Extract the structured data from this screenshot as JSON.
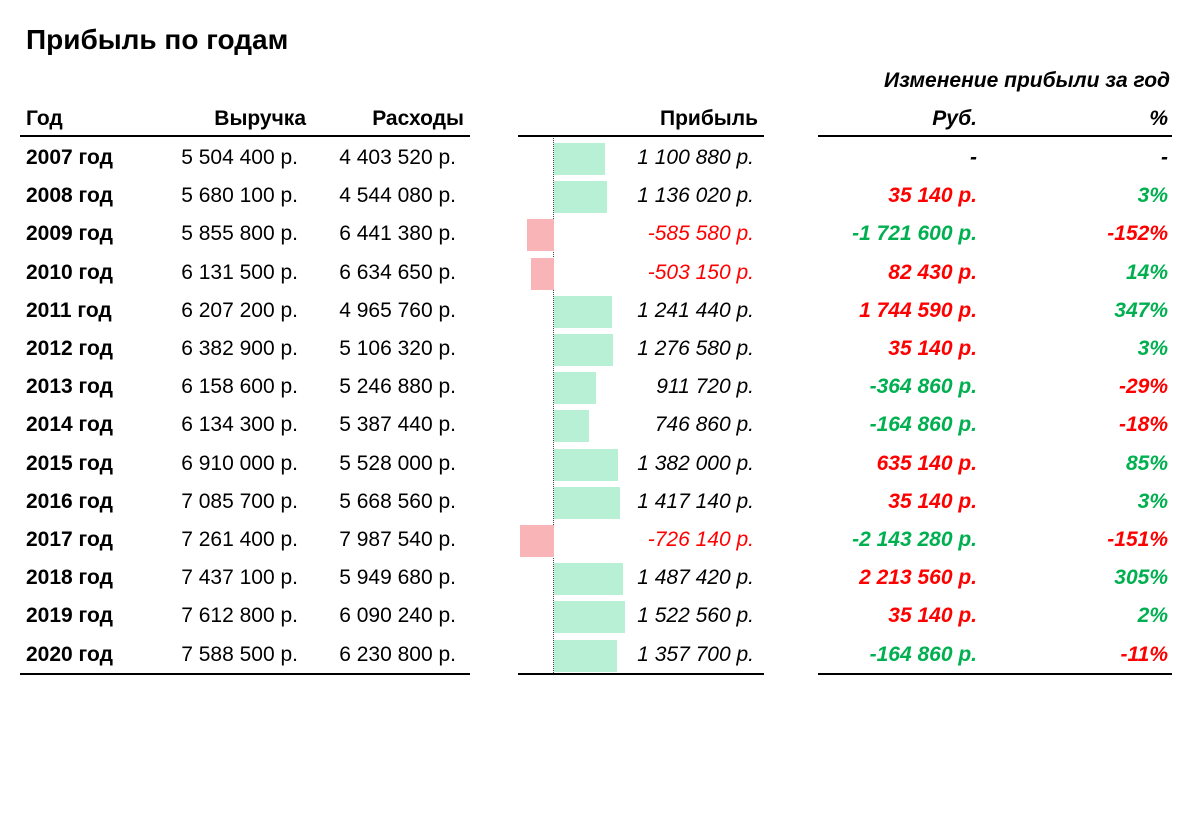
{
  "title": "Прибыль по годам",
  "change_title": "Изменение прибыли за год",
  "headers": {
    "year": "Год",
    "revenue": "Выручка",
    "expenses": "Расходы",
    "profit": "Прибыль",
    "rub": "Руб.",
    "pct": "%"
  },
  "colors": {
    "positive_text": "#00b050",
    "negative_text": "#ff0000",
    "positive_bar": "#b8f0d6",
    "negative_bar": "#f8b4b6"
  },
  "rows": [
    {
      "year": "2007 год",
      "revenue": "5 504 400 р.",
      "expenses": "4 403 520 р.",
      "profit": "1 100 880 р.",
      "profit_value": 1100880,
      "rub": "-",
      "rub_color": "black",
      "pct": "-",
      "pct_color": "black"
    },
    {
      "year": "2008 год",
      "revenue": "5 680 100 р.",
      "expenses": "4 544 080 р.",
      "profit": "1 136 020 р.",
      "profit_value": 1136020,
      "rub": "35 140 р.",
      "rub_color": "red",
      "pct": "3%",
      "pct_color": "green"
    },
    {
      "year": "2009 год",
      "revenue": "5 855 800 р.",
      "expenses": "6 441 380 р.",
      "profit": "-585 580 р.",
      "profit_value": -585580,
      "rub": "-1 721 600 р.",
      "rub_color": "green",
      "pct": "-152%",
      "pct_color": "red"
    },
    {
      "year": "2010 год",
      "revenue": "6 131 500 р.",
      "expenses": "6 634 650 р.",
      "profit": "-503 150 р.",
      "profit_value": -503150,
      "rub": "82 430 р.",
      "rub_color": "red",
      "pct": "14%",
      "pct_color": "green"
    },
    {
      "year": "2011 год",
      "revenue": "6 207 200 р.",
      "expenses": "4 965 760 р.",
      "profit": "1 241 440 р.",
      "profit_value": 1241440,
      "rub": "1 744 590 р.",
      "rub_color": "red",
      "pct": "347%",
      "pct_color": "green"
    },
    {
      "year": "2012 год",
      "revenue": "6 382 900 р.",
      "expenses": "5 106 320 р.",
      "profit": "1 276 580 р.",
      "profit_value": 1276580,
      "rub": "35 140 р.",
      "rub_color": "red",
      "pct": "3%",
      "pct_color": "green"
    },
    {
      "year": "2013 год",
      "revenue": "6 158 600 р.",
      "expenses": "5 246 880 р.",
      "profit": "911 720 р.",
      "profit_value": 911720,
      "rub": "-364 860 р.",
      "rub_color": "green",
      "pct": "-29%",
      "pct_color": "red"
    },
    {
      "year": "2014 год",
      "revenue": "6 134 300 р.",
      "expenses": "5 387 440 р.",
      "profit": "746 860 р.",
      "profit_value": 746860,
      "rub": "-164 860 р.",
      "rub_color": "green",
      "pct": "-18%",
      "pct_color": "red"
    },
    {
      "year": "2015 год",
      "revenue": "6 910 000 р.",
      "expenses": "5 528 000 р.",
      "profit": "1 382 000 р.",
      "profit_value": 1382000,
      "rub": "635 140 р.",
      "rub_color": "red",
      "pct": "85%",
      "pct_color": "green"
    },
    {
      "year": "2016 год",
      "revenue": "7 085 700 р.",
      "expenses": "5 668 560 р.",
      "profit": "1 417 140 р.",
      "profit_value": 1417140,
      "rub": "35 140 р.",
      "rub_color": "red",
      "pct": "3%",
      "pct_color": "green"
    },
    {
      "year": "2017 год",
      "revenue": "7 261 400 р.",
      "expenses": "7 987 540 р.",
      "profit": "-726 140 р.",
      "profit_value": -726140,
      "rub": "-2 143 280 р.",
      "rub_color": "green",
      "pct": "-151%",
      "pct_color": "red"
    },
    {
      "year": "2018 год",
      "revenue": "7 437 100 р.",
      "expenses": "5 949 680 р.",
      "profit": "1 487 420 р.",
      "profit_value": 1487420,
      "rub": "2 213 560 р.",
      "rub_color": "red",
      "pct": "305%",
      "pct_color": "green"
    },
    {
      "year": "2019 год",
      "revenue": "7 612 800 р.",
      "expenses": "6 090 240 р.",
      "profit": "1 522 560 р.",
      "profit_value": 1522560,
      "rub": "35 140 р.",
      "rub_color": "red",
      "pct": "2%",
      "pct_color": "green"
    },
    {
      "year": "2020 год",
      "revenue": "7 588 500 р.",
      "expenses": "6 230 800 р.",
      "profit": "1 357 700 р.",
      "profit_value": 1357700,
      "rub": "-164 860 р.",
      "rub_color": "green",
      "pct": "-11%",
      "pct_color": "red"
    }
  ]
}
